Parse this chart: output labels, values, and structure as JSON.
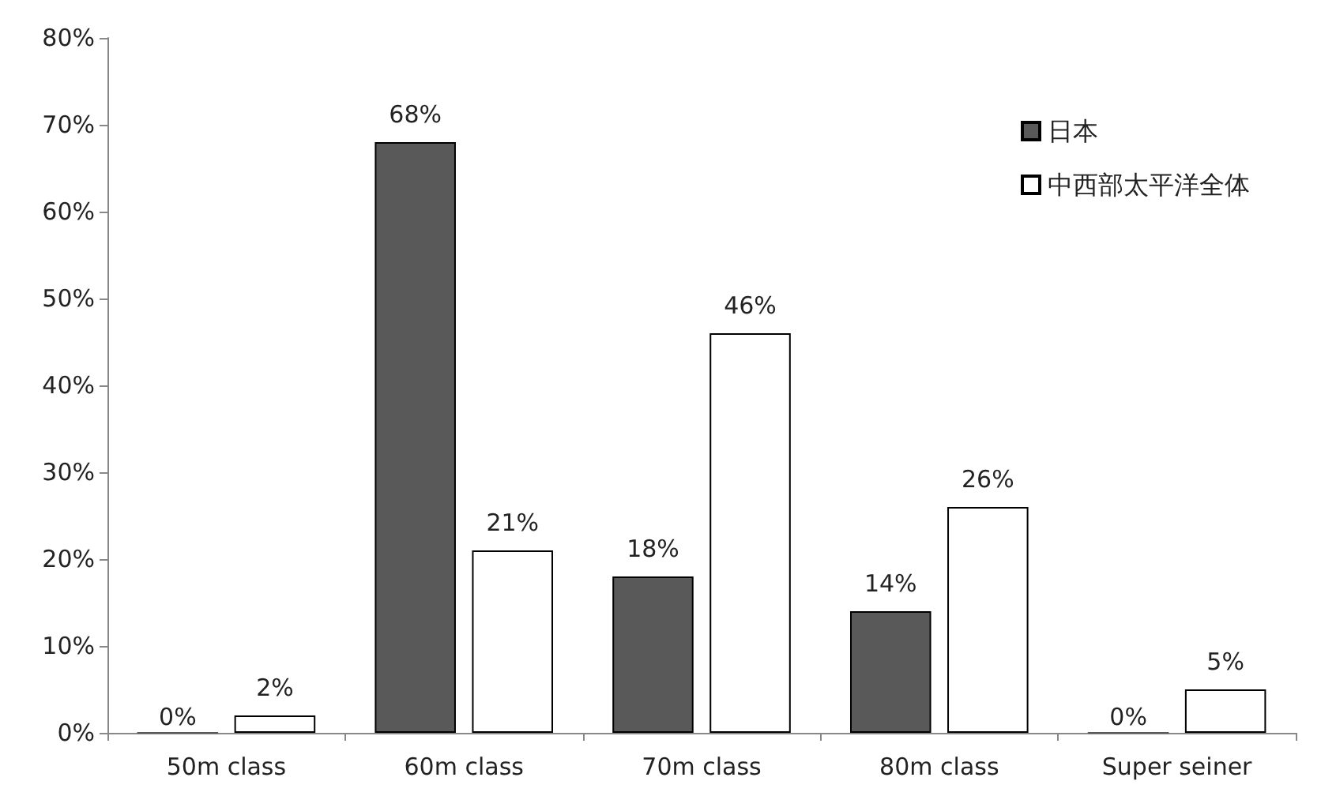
{
  "chart_data": {
    "type": "bar",
    "categories": [
      "50m class",
      "60m class",
      "70m class",
      "80m class",
      "Super seiner"
    ],
    "series": [
      {
        "name": "日本",
        "color": "#595959",
        "values": [
          0,
          68,
          18,
          14,
          0
        ],
        "value_labels": [
          "0%",
          "68%",
          "18%",
          "14%",
          "0%"
        ]
      },
      {
        "name": "中西部太平洋全体",
        "color": "#ffffff",
        "values": [
          2,
          21,
          46,
          26,
          5
        ],
        "value_labels": [
          "2%",
          "21%",
          "46%",
          "26%",
          "5%"
        ]
      }
    ],
    "ylim": [
      0,
      80
    ],
    "yticks": [
      {
        "value": 0,
        "label": "0%"
      },
      {
        "value": 10,
        "label": "10%"
      },
      {
        "value": 20,
        "label": "20%"
      },
      {
        "value": 30,
        "label": "30%"
      },
      {
        "value": 40,
        "label": "40%"
      },
      {
        "value": 50,
        "label": "50%"
      },
      {
        "value": 60,
        "label": "60%"
      },
      {
        "value": 70,
        "label": "70%"
      },
      {
        "value": 80,
        "label": "80%"
      }
    ],
    "grid": false,
    "legend": "top right"
  }
}
